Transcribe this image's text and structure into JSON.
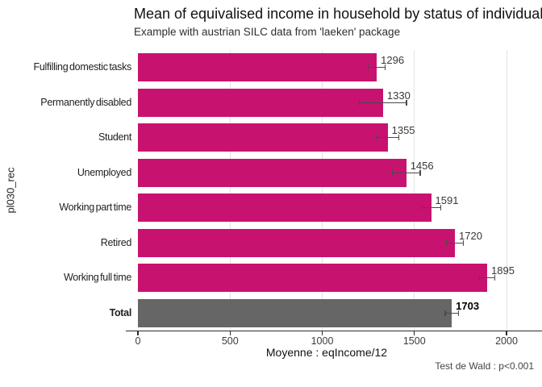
{
  "chart_data": {
    "type": "bar",
    "orientation": "horizontal",
    "title": "Mean of equivalised income in household by status of individuals",
    "subtitle": "Example with austrian SILC data from 'laeken' package",
    "xlabel": "Moyenne : eqIncome/12",
    "ylabel": "pl030_rec",
    "caption": "Test de Wald : p<0.001",
    "categories": [
      "Fulfilling domestic tasks",
      "Permanently disabled",
      "Student",
      "Unemployed",
      "Working part time",
      "Retired",
      "Working full time",
      "Total"
    ],
    "values": [
      1296,
      1330,
      1355,
      1456,
      1591,
      1720,
      1895,
      1703
    ],
    "errors": [
      48,
      130,
      65,
      78,
      55,
      50,
      45,
      38
    ],
    "value_labels": [
      "1296",
      "1330",
      "1355",
      "1456",
      "1591",
      "1720",
      "1895",
      "1703"
    ],
    "xticks": [
      0,
      500,
      1000,
      1500,
      2000
    ],
    "xlim": [
      0,
      2190
    ],
    "grid": true,
    "legend": "none",
    "bar_color": "#C8126F",
    "total_color": "#666666",
    "highlight_category": "Total"
  }
}
